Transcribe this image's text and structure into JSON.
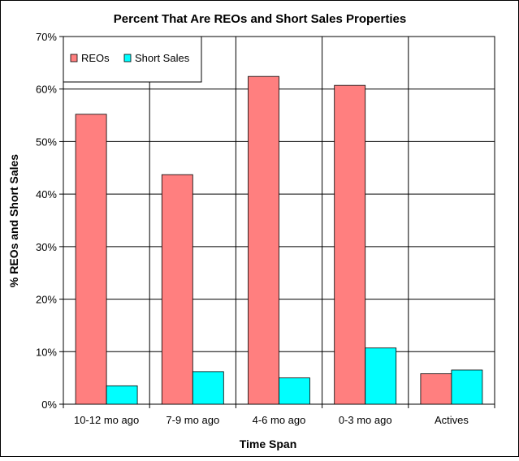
{
  "chart_data": {
    "type": "bar",
    "title": "Percent That Are REOs and Short Sales Properties",
    "xlabel": "Time Span",
    "ylabel": "% REOs and Short Sales",
    "categories": [
      "10-12 mo ago",
      "7-9 mo ago",
      "4-6 mo ago",
      "0-3 mo ago",
      "Actives"
    ],
    "series": [
      {
        "name": "REOs",
        "values": [
          55.2,
          43.7,
          62.4,
          60.7,
          5.8
        ],
        "color": "#ff7f7f"
      },
      {
        "name": "Short Sales",
        "values": [
          3.5,
          6.2,
          5.0,
          10.7,
          6.5
        ],
        "color": "#00ffff"
      }
    ],
    "ylim": [
      0,
      70
    ],
    "yticks": [
      0,
      10,
      20,
      30,
      40,
      50,
      60,
      70
    ],
    "ytick_labels": [
      "0%",
      "10%",
      "20%",
      "30%",
      "40%",
      "50%",
      "60%",
      "70%"
    ],
    "grid": true,
    "legend": "top-left"
  }
}
